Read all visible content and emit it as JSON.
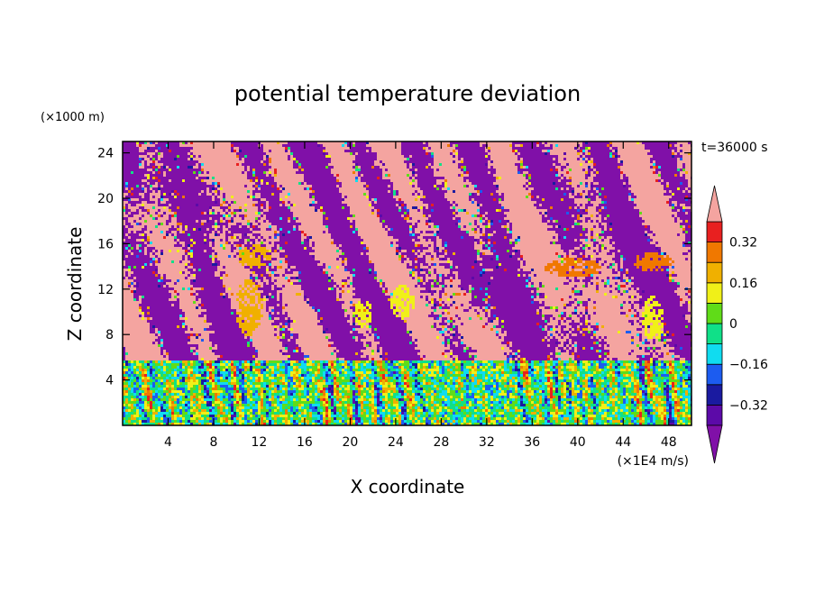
{
  "chart_data": {
    "type": "heatmap",
    "title": "potential temperature deviation",
    "xlabel": "X coordinate",
    "ylabel": "Z coordinate",
    "x_unit": "(×1E4 m/s)",
    "y_unit": "(×1000 m)",
    "time_label": "t=36000 s",
    "xlim": [
      0,
      50
    ],
    "ylim": [
      0,
      25
    ],
    "x_ticks": [
      4,
      8,
      12,
      16,
      20,
      24,
      28,
      32,
      36,
      40,
      44,
      48
    ],
    "y_ticks": [
      4,
      8,
      12,
      16,
      20,
      24
    ],
    "colorbar": {
      "levels": [
        -0.4,
        -0.32,
        -0.24,
        -0.16,
        -0.08,
        0,
        0.08,
        0.16,
        0.24,
        0.32,
        0.4
      ],
      "tick_labels": [
        "0.32",
        "0.16",
        "0",
        "-0.16",
        "-0.32"
      ],
      "tick_values": [
        0.32,
        0.16,
        0,
        -0.16,
        -0.32
      ],
      "colors_low_to_high": [
        "#5c0aa8",
        "#1a1aa0",
        "#1c5cf0",
        "#10dcf0",
        "#10e088",
        "#60dc18",
        "#f0f018",
        "#f0b000",
        "#f07800",
        "#e82020"
      ],
      "under_color": "#8010a8",
      "over_color": "#f4a4a0"
    }
  }
}
